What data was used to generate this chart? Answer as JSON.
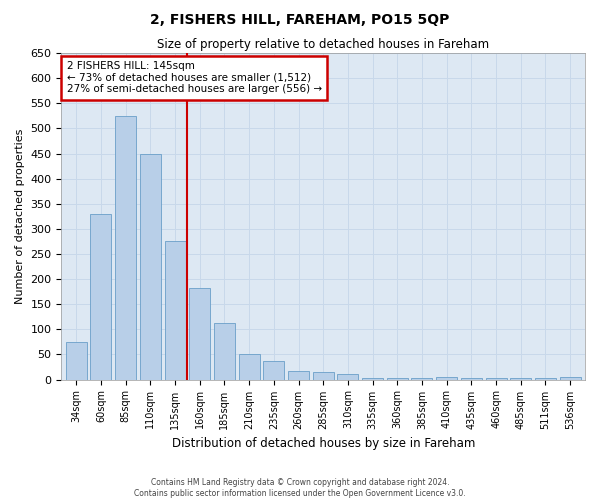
{
  "title": "2, FISHERS HILL, FAREHAM, PO15 5QP",
  "subtitle": "Size of property relative to detached houses in Fareham",
  "xlabel": "Distribution of detached houses by size in Fareham",
  "ylabel": "Number of detached properties",
  "categories": [
    "34sqm",
    "60sqm",
    "85sqm",
    "110sqm",
    "135sqm",
    "160sqm",
    "185sqm",
    "210sqm",
    "235sqm",
    "260sqm",
    "285sqm",
    "310sqm",
    "335sqm",
    "360sqm",
    "385sqm",
    "410sqm",
    "435sqm",
    "460sqm",
    "485sqm",
    "511sqm",
    "536sqm"
  ],
  "values": [
    75,
    330,
    525,
    450,
    275,
    183,
    113,
    50,
    37,
    18,
    15,
    12,
    4,
    3,
    3,
    5,
    3,
    3,
    3,
    3,
    5
  ],
  "bar_color": "#b8cfe8",
  "bar_edge_color": "#6a9fc8",
  "annotation_text": "2 FISHERS HILL: 145sqm\n← 73% of detached houses are smaller (1,512)\n27% of semi-detached houses are larger (556) →",
  "annotation_box_color": "#ffffff",
  "annotation_box_edge_color": "#cc0000",
  "vline_x": 4.5,
  "vline_color": "#cc0000",
  "ylim": [
    0,
    650
  ],
  "yticks": [
    0,
    50,
    100,
    150,
    200,
    250,
    300,
    350,
    400,
    450,
    500,
    550,
    600,
    650
  ],
  "grid_color": "#c8d8ea",
  "background_color": "#dde8f3",
  "footer_line1": "Contains HM Land Registry data © Crown copyright and database right 2024.",
  "footer_line2": "Contains public sector information licensed under the Open Government Licence v3.0."
}
